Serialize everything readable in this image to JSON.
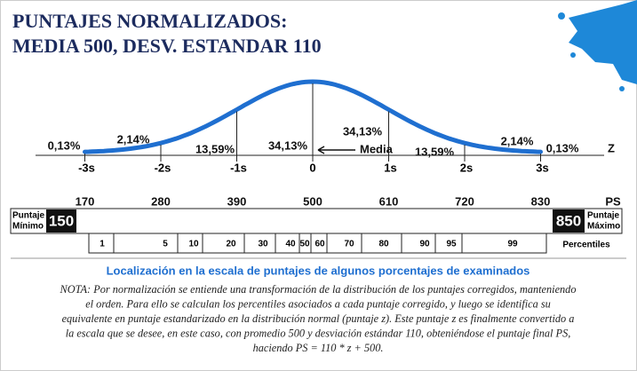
{
  "header": {
    "title_line1": "PUNTAJES NORMALIZADOS:",
    "title_line2": "MEDIA 500, DESV. ESTANDAR 110"
  },
  "curve": {
    "percentages": [
      "0,13%",
      "2,14%",
      "13,59%",
      "34,13%",
      "34,13%",
      "13,59%",
      "2,14%",
      "0,13%"
    ],
    "mean_label": "Media",
    "z_axis_label": "Z",
    "z_labels": [
      "-3s",
      "-2s",
      "-1s",
      "0",
      "1s",
      "2s",
      "3s"
    ]
  },
  "scale": {
    "ps_values": [
      "170",
      "280",
      "390",
      "500",
      "610",
      "720",
      "830"
    ],
    "ps_label": "PS",
    "min_label_line1": "Puntaje",
    "min_label_line2": "Mínimo",
    "min_value": "150",
    "max_value": "850",
    "max_label_line1": "Puntaje",
    "max_label_line2": "Máximo",
    "percentiles": [
      "1",
      "5",
      "10",
      "20",
      "30",
      "40",
      "50",
      "60",
      "70",
      "80",
      "90",
      "95",
      "99"
    ],
    "percentiles_label": "Percentiles"
  },
  "caption": "Localización en la escala de puntajes de algunos porcentajes de examinados",
  "note": [
    "NOTA: Por normalización se entiende una transformación de la distribución de los puntajes corregidos, manteniendo",
    "el orden. Para ello se calculan los percentiles asociados a cada puntaje corregido, y luego se identifica su",
    "equivalente en puntaje estandarizado en la distribución normal (puntaje z). Este puntaje z es finalmente convertido a",
    "la escala que se desee, en este caso, con promedio 500 y desviación estándar 110, obteniéndose el puntaje final PS,",
    "haciendo PS = 110 * z + 500."
  ]
}
